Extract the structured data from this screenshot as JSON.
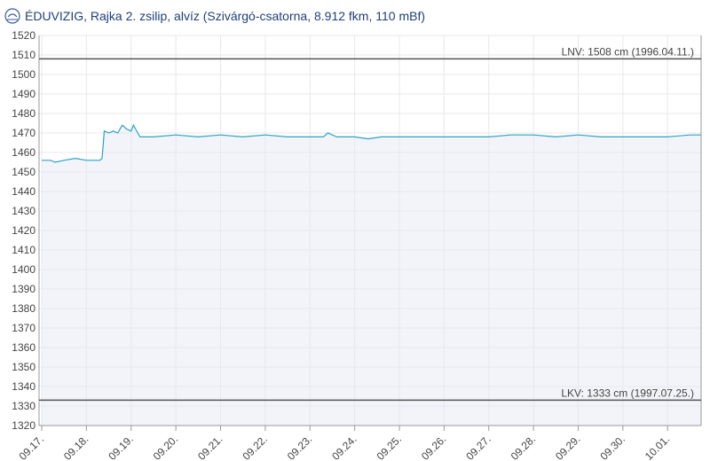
{
  "chart_data": {
    "type": "area",
    "title": "ÉDUVIZIG, Rajka 2. zsilip, alvíz (Szivárgó-csatorna, 8.912 fkm, 110 mBf)",
    "x": [
      0,
      0.2,
      0.3,
      0.5,
      0.75,
      1,
      1.3,
      1.35,
      1.4,
      1.5,
      1.6,
      1.7,
      1.8,
      1.9,
      2.0,
      2.05,
      2.15,
      2.2,
      2.5,
      3,
      3.5,
      4,
      4.5,
      5,
      5.5,
      6,
      6.3,
      6.4,
      6.6,
      7,
      7.3,
      7.6,
      8,
      9,
      10,
      10.5,
      11,
      11.5,
      12,
      12.5,
      13,
      13.5,
      14,
      14.5,
      14.75
    ],
    "series": [
      {
        "name": "alvíz",
        "color": "#2ba3c6",
        "values": [
          1456,
          1456,
          1455,
          1456,
          1457,
          1456,
          1456,
          1457,
          1471,
          1470,
          1471,
          1470,
          1474,
          1472,
          1471,
          1474,
          1470,
          1468,
          1468,
          1469,
          1468,
          1469,
          1468,
          1469,
          1468,
          1468,
          1468,
          1470,
          1468,
          1468,
          1467,
          1468,
          1468,
          1468,
          1468,
          1469,
          1469,
          1468,
          1469,
          1468,
          1468,
          1468,
          1468,
          1469,
          1469
        ]
      }
    ],
    "xlim": [
      -0.06,
      14.75
    ],
    "xticks": [
      {
        "value": 0,
        "label": "09.17."
      },
      {
        "value": 1,
        "label": "09.18."
      },
      {
        "value": 2,
        "label": "09.19."
      },
      {
        "value": 3,
        "label": "09.20."
      },
      {
        "value": 4,
        "label": "09.21."
      },
      {
        "value": 5,
        "label": "09.22."
      },
      {
        "value": 6,
        "label": "09.23."
      },
      {
        "value": 7,
        "label": "09.24."
      },
      {
        "value": 8,
        "label": "09.25."
      },
      {
        "value": 9,
        "label": "09.26."
      },
      {
        "value": 10,
        "label": "09.27."
      },
      {
        "value": 11,
        "label": "09.28."
      },
      {
        "value": 12,
        "label": "09.29."
      },
      {
        "value": 13,
        "label": "09.30."
      },
      {
        "value": 14,
        "label": "10.01."
      }
    ],
    "ylim": [
      1320,
      1520
    ],
    "yticks": [
      1320,
      1330,
      1340,
      1350,
      1360,
      1370,
      1380,
      1390,
      1400,
      1410,
      1420,
      1430,
      1440,
      1450,
      1460,
      1470,
      1480,
      1490,
      1500,
      1510,
      1520
    ],
    "reference_lines": [
      {
        "value": 1508,
        "label": "LNV: 1508 cm (1996.04.11.)"
      },
      {
        "value": 1333,
        "label": "LKV: 1333 cm (1997.07.25.)"
      }
    ],
    "grid": true
  }
}
